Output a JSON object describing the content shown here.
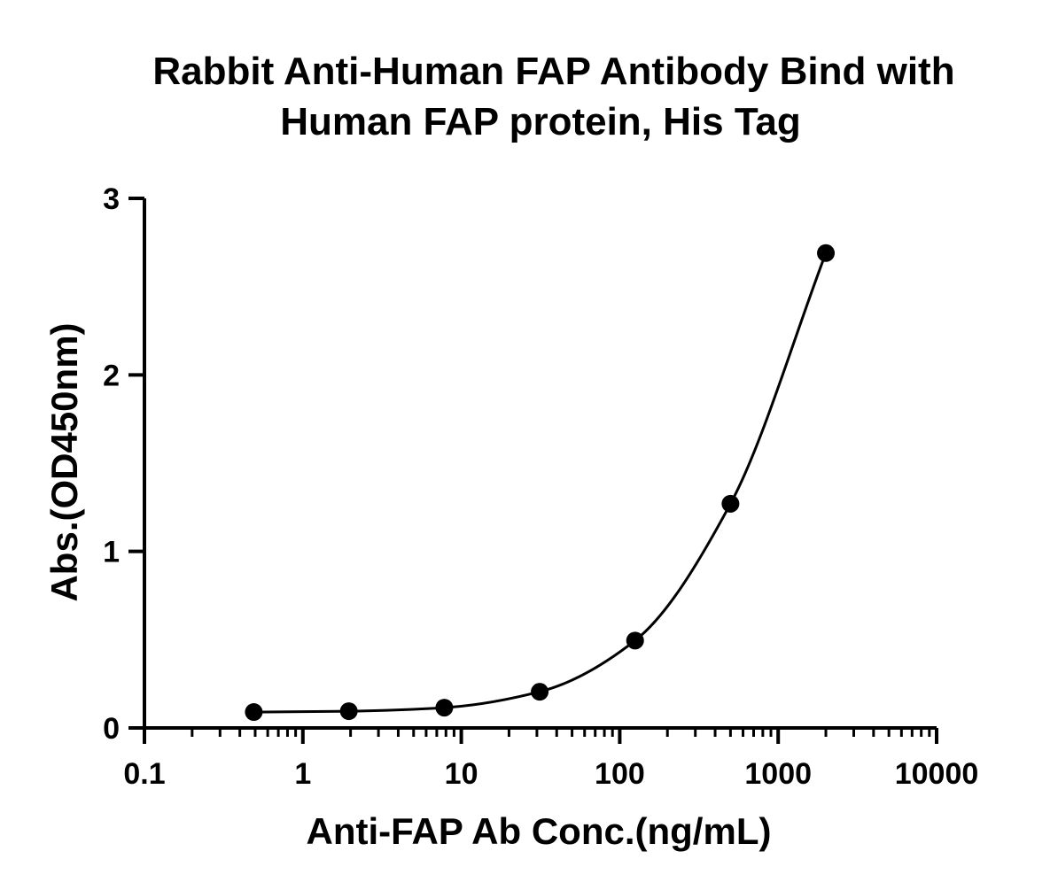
{
  "chart_data": {
    "type": "scatter",
    "title": [
      "Rabbit Anti-Human FAP Antibody Bind with",
      "Human FAP protein, His Tag"
    ],
    "xlabel": "Anti-FAP Ab Conc.(ng/mL)",
    "ylabel": "Abs.(OD450nm)",
    "xscale": "log",
    "xlim": [
      0.1,
      10000
    ],
    "ylim": [
      0,
      3
    ],
    "xticks": [
      0.1,
      1,
      10,
      100,
      1000,
      10000
    ],
    "xtick_labels": [
      "0.1",
      "1",
      "10",
      "100",
      "1000",
      "10000"
    ],
    "yticks": [
      0,
      1,
      2,
      3
    ],
    "ytick_labels": [
      "0",
      "1",
      "2",
      "3"
    ],
    "grid": false,
    "series": [
      {
        "x": [
          0.49,
          1.95,
          7.81,
          31.25,
          125,
          500,
          2000
        ],
        "y": [
          0.09,
          0.095,
          0.115,
          0.205,
          0.495,
          1.27,
          2.69
        ],
        "marker": "circle",
        "color": "#000000",
        "fit": "four-parameter logistic curve"
      }
    ]
  }
}
